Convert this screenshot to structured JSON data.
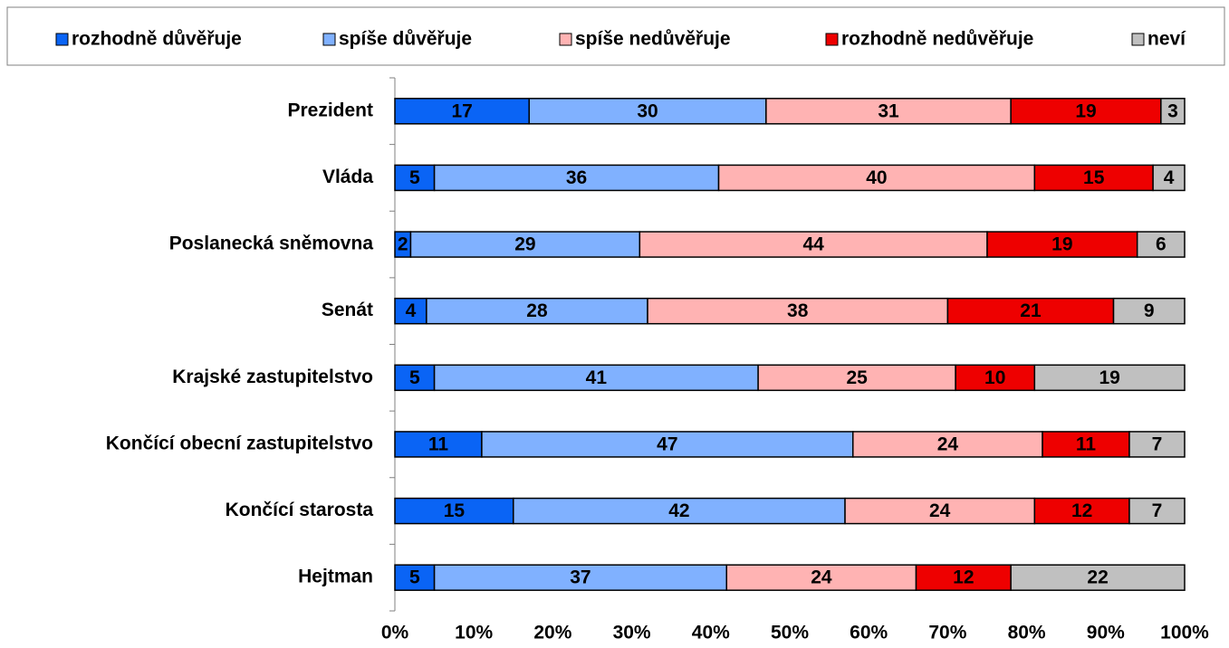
{
  "chart_data": {
    "type": "stacked-bar-horizontal",
    "categories": [
      "Prezident",
      "Vláda",
      "Poslanecká sněmovna",
      "Senát",
      "Krajské zastupitelstvo",
      "Končící obecní zastupitelstvo",
      "Končící starosta",
      "Hejtman"
    ],
    "series": [
      {
        "name": "rozhodně důvěřuje",
        "color": "#0a64f5",
        "values": [
          17,
          5,
          2,
          4,
          5,
          11,
          15,
          5
        ]
      },
      {
        "name": "spíše důvěřuje",
        "color": "#80b1ff",
        "values": [
          30,
          36,
          29,
          28,
          41,
          47,
          42,
          37
        ]
      },
      {
        "name": "spíše nedůvěřuje",
        "color": "#ffb3b3",
        "values": [
          31,
          40,
          44,
          38,
          25,
          24,
          24,
          24
        ]
      },
      {
        "name": "rozhodně nedůvěřuje",
        "color": "#ee0000",
        "values": [
          19,
          15,
          19,
          21,
          10,
          11,
          12,
          12
        ]
      },
      {
        "name": "neví",
        "color": "#c0c0c0",
        "values": [
          3,
          4,
          6,
          9,
          19,
          7,
          7,
          22
        ]
      }
    ],
    "xlim": [
      0,
      100
    ],
    "xticks": [
      {
        "value": 0,
        "label": "0%"
      },
      {
        "value": 10,
        "label": "10%"
      },
      {
        "value": 20,
        "label": "20%"
      },
      {
        "value": 30,
        "label": "30%"
      },
      {
        "value": 40,
        "label": "40%"
      },
      {
        "value": 50,
        "label": "50%"
      },
      {
        "value": 60,
        "label": "60%"
      },
      {
        "value": 70,
        "label": "70%"
      },
      {
        "value": 80,
        "label": "80%"
      },
      {
        "value": 90,
        "label": "90%"
      },
      {
        "value": 100,
        "label": "100%"
      }
    ],
    "grid": false,
    "legend": "top"
  }
}
